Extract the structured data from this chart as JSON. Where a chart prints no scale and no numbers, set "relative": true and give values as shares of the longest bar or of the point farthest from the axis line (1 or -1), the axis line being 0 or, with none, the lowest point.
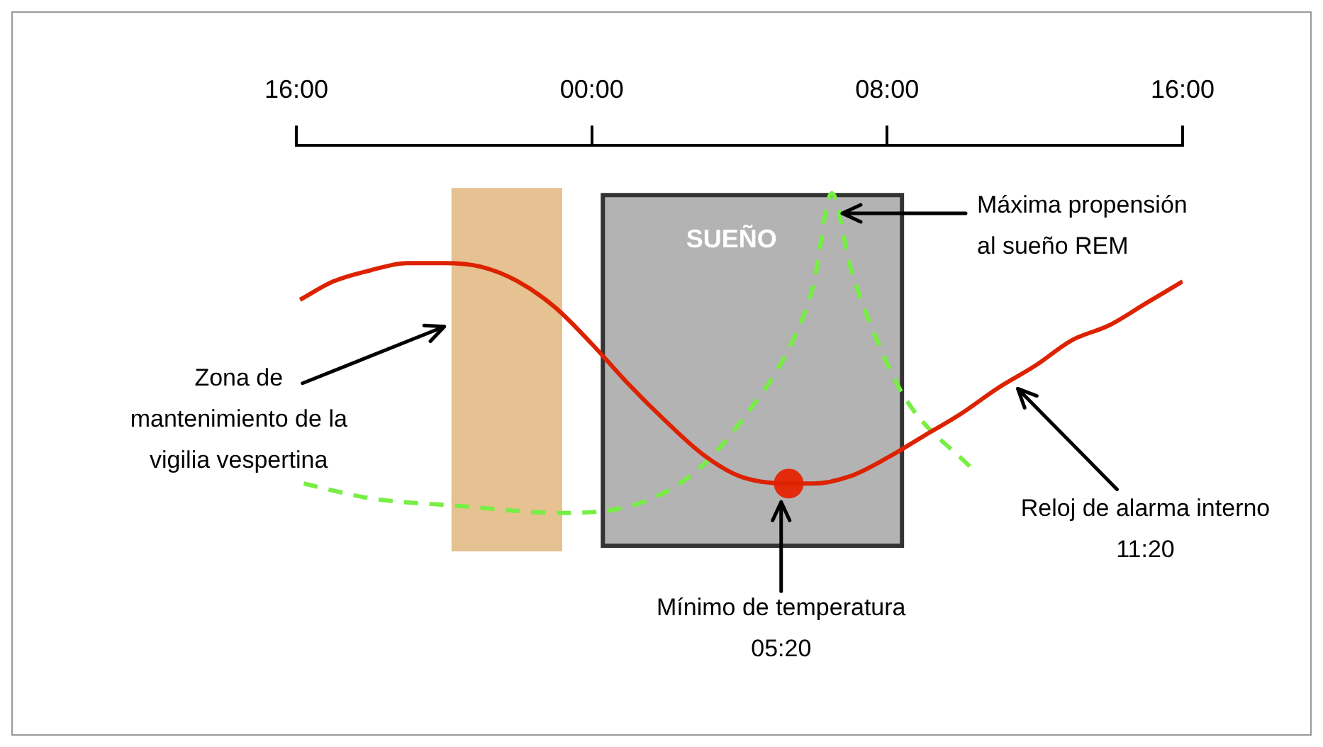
{
  "chart_data": {
    "type": "line",
    "relative": true,
    "xlim": [
      "2000-01-01T16:00",
      "2000-01-02T16:00"
    ],
    "xticks": [
      {
        "value": "2000-01-01T16:00",
        "label": "16:00"
      },
      {
        "value": "2000-01-02T00:00",
        "label": "00:00"
      },
      {
        "value": "2000-01-02T08:00",
        "label": "08:00"
      },
      {
        "value": "2000-01-02T16:00",
        "label": "16:00"
      }
    ],
    "series": [
      {
        "color": "#dd2200",
        "x": [
          "2000-01-01T16:06",
          "2000-01-01T17:00",
          "2000-01-01T18:00",
          "2000-01-01T19:00",
          "2000-01-01T20:00",
          "2000-01-01T21:00",
          "2000-01-01T22:00",
          "2000-01-01T23:00",
          "2000-01-02T00:00",
          "2000-01-02T01:00",
          "2000-01-02T02:00",
          "2000-01-02T03:00",
          "2000-01-02T04:00",
          "2000-01-02T05:20",
          "2000-01-02T06:00",
          "2000-01-02T07:00",
          "2000-01-02T08:00",
          "2000-01-02T09:00",
          "2000-01-02T10:00",
          "2000-01-02T11:00",
          "2000-01-02T12:00",
          "2000-01-02T13:00",
          "2000-01-02T14:00",
          "2000-01-02T15:00",
          "2000-01-02T16:00"
        ],
        "values": [
          -0.42,
          -0.37,
          -0.34,
          -0.32,
          -0.32,
          -0.33,
          -0.37,
          -0.44,
          -0.54,
          -0.65,
          -0.75,
          -0.84,
          -0.9,
          -0.92,
          -0.92,
          -0.9,
          -0.85,
          -0.79,
          -0.73,
          -0.66,
          -0.6,
          -0.53,
          -0.49,
          -0.43,
          -0.37
        ]
      },
      {
        "color": "#77ee44",
        "line_style": "dashed",
        "x": [
          "2000-01-01T16:12",
          "2000-01-01T18:00",
          "2000-01-01T20:18",
          "2000-01-01T23:12",
          "2000-01-02T01:24",
          "2000-01-02T02:54",
          "2000-01-02T04:12",
          "2000-01-02T05:24",
          "2000-01-02T06:00",
          "2000-01-02T06:30",
          "2000-01-02T07:00",
          "2000-01-02T07:36",
          "2000-01-02T08:30",
          "2000-01-02T10:18"
        ],
        "values": [
          -0.92,
          -0.96,
          -0.98,
          -1,
          -0.97,
          -0.88,
          -0.73,
          -0.54,
          -0.38,
          -0.13,
          -0.33,
          -0.5,
          -0.69,
          -0.88
        ]
      },
      {
        "type": "scatter",
        "color": "#e32b0b",
        "x": [
          "2000-01-02T05:20"
        ],
        "values": [
          -0.92
        ]
      }
    ],
    "bands": [
      {
        "axis": "x",
        "from": "2000-01-01T20:12",
        "to": "2000-01-01T23:12",
        "color": "#e6c191"
      },
      {
        "axis": "x",
        "from": "2000-01-02T00:18",
        "to": "2000-01-02T08:24",
        "label": "SUEÑO",
        "color": "#b3b3b3"
      }
    ],
    "annotations": [
      "Zona de\nmantenimiento de la\nvigilia vespertina",
      "Máxima propensión\nal sueño REM",
      "Reloj de alarma interno\n11:20",
      "Mínimo de temperatura\n05:20"
    ]
  }
}
